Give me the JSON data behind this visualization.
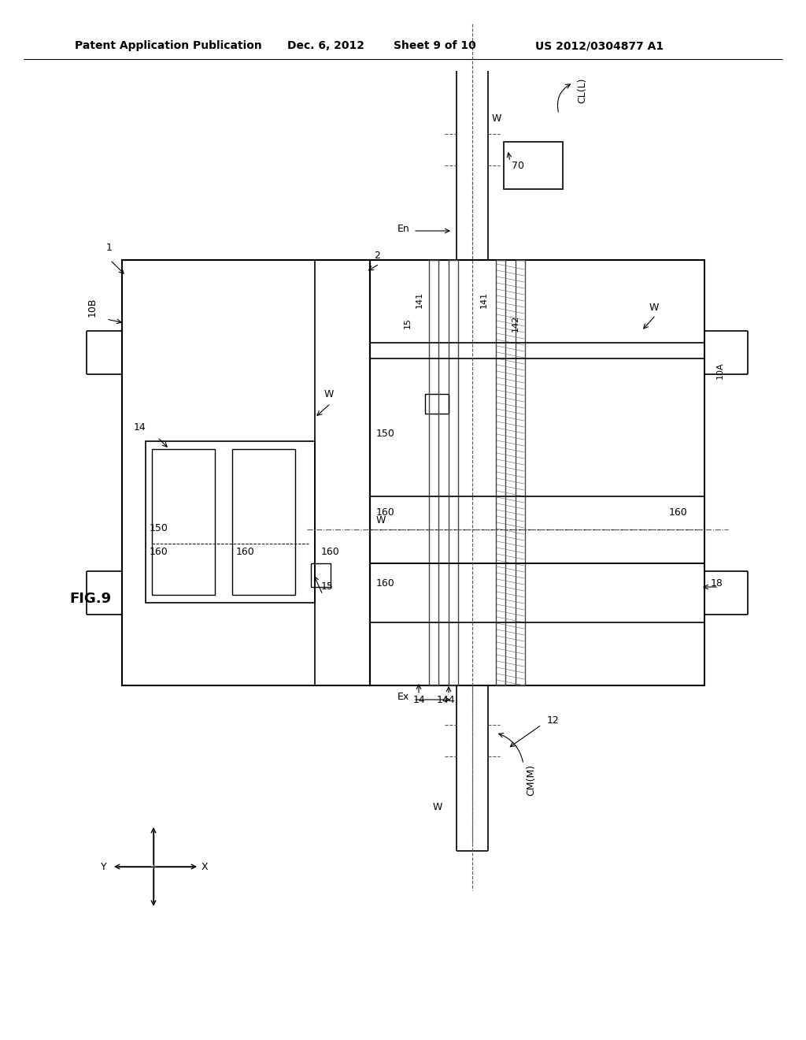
{
  "bg_color": "#ffffff",
  "header_left": "Patent Application Publication",
  "header_date": "Dec. 6, 2012",
  "header_sheet": "Sheet 9 of 10",
  "header_patent": "US 2012/0304877 A1"
}
